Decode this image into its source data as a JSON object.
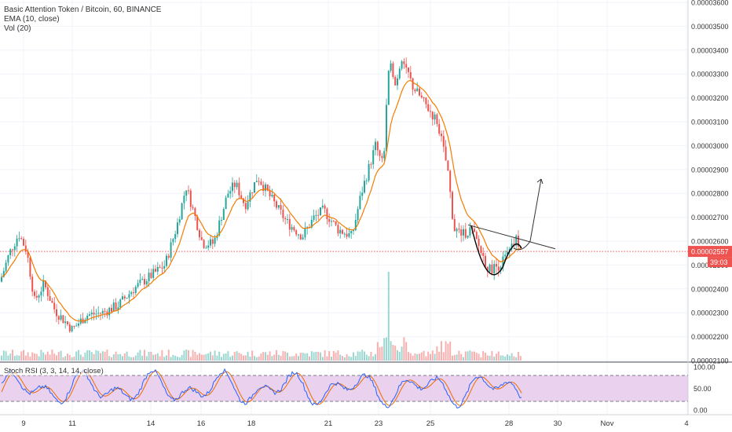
{
  "chart_data": {
    "type": "candlestick",
    "title": "Basic Attention Token / Bitcoin, 60, BINANCE",
    "indicators": [
      "EMA (10, close)",
      "Vol (20)"
    ],
    "price_axis": {
      "ticks": [
        "0.00003600",
        "0.00003500",
        "0.00003400",
        "0.00003300",
        "0.00003200",
        "0.00003100",
        "0.00003000",
        "0.00002900",
        "0.00002800",
        "0.00002700",
        "0.00002600",
        "0.00002500",
        "0.00002400",
        "0.00002300",
        "0.00002200",
        "0.00002100"
      ],
      "ylim": [
        2.1e-05,
        3.6e-05
      ]
    },
    "time_axis": {
      "ticks": [
        "9",
        "11",
        "14",
        "16",
        "18",
        "21",
        "23",
        "25",
        "28",
        "30",
        "Nov",
        "4"
      ]
    },
    "last_price": {
      "value": "0.00002557",
      "countdown": "39:03",
      "color": "#ef5350"
    },
    "colors": {
      "up": "#26a69a",
      "down": "#ef5350",
      "ema": "#f57c00",
      "rsi_k": "#2962ff",
      "rsi_d": "#ef6c00",
      "rsi_band": "#e1bee7"
    },
    "price_path": [
      {
        "x": 0,
        "p": 2.43e-05
      },
      {
        "x": 12,
        "p": 2.55e-05
      },
      {
        "x": 24,
        "p": 2.63e-05
      },
      {
        "x": 34,
        "p": 2.56e-05
      },
      {
        "x": 44,
        "p": 2.35e-05
      },
      {
        "x": 56,
        "p": 2.42e-05
      },
      {
        "x": 70,
        "p": 2.31e-05
      },
      {
        "x": 92,
        "p": 2.23e-05
      },
      {
        "x": 110,
        "p": 2.29e-05
      },
      {
        "x": 130,
        "p": 2.3e-05
      },
      {
        "x": 150,
        "p": 2.33e-05
      },
      {
        "x": 170,
        "p": 2.4e-05
      },
      {
        "x": 190,
        "p": 2.45e-05
      },
      {
        "x": 210,
        "p": 2.5e-05
      },
      {
        "x": 225,
        "p": 2.66e-05
      },
      {
        "x": 237,
        "p": 2.83e-05
      },
      {
        "x": 245,
        "p": 2.74e-05
      },
      {
        "x": 258,
        "p": 2.59e-05
      },
      {
        "x": 272,
        "p": 2.59e-05
      },
      {
        "x": 290,
        "p": 2.8e-05
      },
      {
        "x": 300,
        "p": 2.84e-05
      },
      {
        "x": 312,
        "p": 2.75e-05
      },
      {
        "x": 328,
        "p": 2.87e-05
      },
      {
        "x": 345,
        "p": 2.78e-05
      },
      {
        "x": 365,
        "p": 2.68e-05
      },
      {
        "x": 385,
        "p": 2.62e-05
      },
      {
        "x": 400,
        "p": 2.7e-05
      },
      {
        "x": 412,
        "p": 2.73e-05
      },
      {
        "x": 430,
        "p": 2.65e-05
      },
      {
        "x": 448,
        "p": 2.62e-05
      },
      {
        "x": 460,
        "p": 2.8e-05
      },
      {
        "x": 478,
        "p": 3e-05
      },
      {
        "x": 488,
        "p": 2.92e-05
      },
      {
        "x": 496,
        "p": 3.4e-05
      },
      {
        "x": 503,
        "p": 3.25e-05
      },
      {
        "x": 512,
        "p": 3.38e-05
      },
      {
        "x": 525,
        "p": 3.25e-05
      },
      {
        "x": 540,
        "p": 3.18e-05
      },
      {
        "x": 557,
        "p": 3.1e-05
      },
      {
        "x": 570,
        "p": 2.9e-05
      },
      {
        "x": 578,
        "p": 2.65e-05
      },
      {
        "x": 590,
        "p": 2.63e-05
      },
      {
        "x": 600,
        "p": 2.65e-05
      },
      {
        "x": 612,
        "p": 2.56e-05
      },
      {
        "x": 622,
        "p": 2.48e-05
      },
      {
        "x": 636,
        "p": 2.5e-05
      },
      {
        "x": 650,
        "p": 2.56e-05
      },
      {
        "x": 658,
        "p": 2.61e-05
      },
      {
        "x": 664,
        "p": 2.557e-05
      }
    ],
    "volume_spike": {
      "x": 495,
      "label": ""
    },
    "stoch_rsi": {
      "label": "Stoch RSI (3, 3, 14, 14, close)",
      "ticks": [
        "100.00",
        "50.00",
        "0.00"
      ],
      "upper_band": 80,
      "lower_band": 20
    },
    "annotations": [
      {
        "type": "trendline",
        "desc": "descending neckline"
      },
      {
        "type": "arrow",
        "desc": "projected breakout up"
      }
    ]
  }
}
